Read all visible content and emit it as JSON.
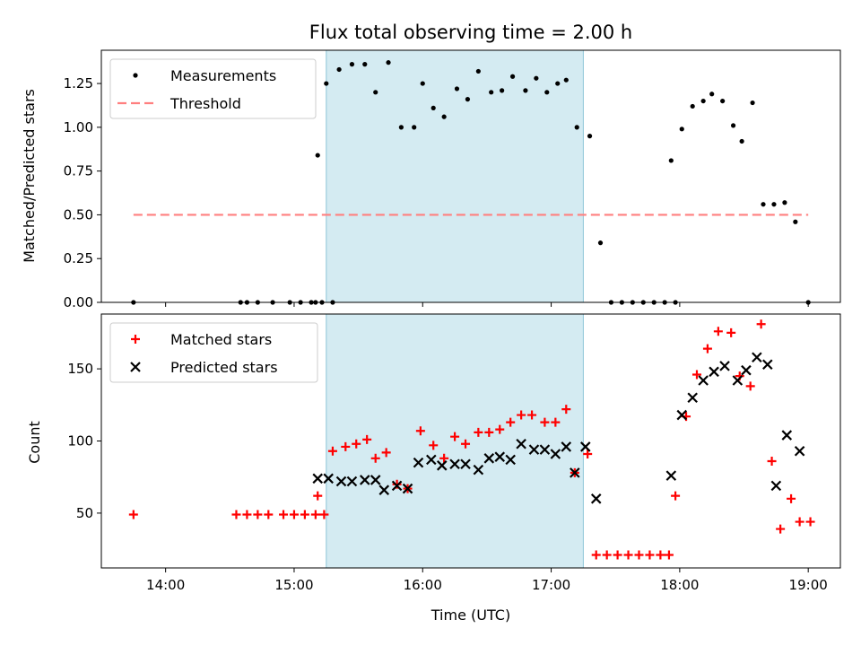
{
  "chart_data": [
    {
      "type": "scatter",
      "title": "Flux total observing time = 2.00 h",
      "xlabel": "",
      "ylabel": "Matched/Predicted stars",
      "xlim": [
        "13:30",
        "19:15"
      ],
      "ylim": [
        0,
        1.44
      ],
      "yticks": [
        0.0,
        0.25,
        0.5,
        0.75,
        1.0,
        1.25
      ],
      "ytick_labels": [
        "0.00",
        "0.25",
        "0.50",
        "0.75",
        "1.00",
        "1.25"
      ],
      "xticks": [
        "14:00",
        "15:00",
        "16:00",
        "17:00",
        "18:00",
        "19:00"
      ],
      "shaded_interval": [
        "15:15",
        "17:15"
      ],
      "shade_color": "#add8e6",
      "legend_position": "top-left",
      "series": [
        {
          "name": "Measurements",
          "marker": "dot",
          "color": "#000000",
          "points": [
            [
              "13:45",
              0.0
            ],
            [
              "14:35",
              0.0
            ],
            [
              "14:38",
              0.0
            ],
            [
              "14:43",
              0.0
            ],
            [
              "14:50",
              0.0
            ],
            [
              "14:58",
              0.0
            ],
            [
              "15:03",
              0.0
            ],
            [
              "15:08",
              0.0
            ],
            [
              "15:13",
              0.0
            ],
            [
              "15:18",
              0.0
            ],
            [
              "15:10",
              0.0
            ],
            [
              "15:11",
              0.84
            ],
            [
              "15:15",
              1.25
            ],
            [
              "15:21",
              1.33
            ],
            [
              "15:27",
              1.36
            ],
            [
              "15:33",
              1.36
            ],
            [
              "15:38",
              1.2
            ],
            [
              "15:44",
              1.37
            ],
            [
              "15:50",
              1.0
            ],
            [
              "15:56",
              1.0
            ],
            [
              "16:00",
              1.25
            ],
            [
              "16:05",
              1.11
            ],
            [
              "16:10",
              1.06
            ],
            [
              "16:16",
              1.22
            ],
            [
              "16:21",
              1.16
            ],
            [
              "16:26",
              1.32
            ],
            [
              "16:32",
              1.2
            ],
            [
              "16:37",
              1.21
            ],
            [
              "16:42",
              1.29
            ],
            [
              "16:48",
              1.21
            ],
            [
              "16:53",
              1.28
            ],
            [
              "16:58",
              1.2
            ],
            [
              "17:03",
              1.25
            ],
            [
              "17:07",
              1.27
            ],
            [
              "17:12",
              1.0
            ],
            [
              "17:18",
              0.95
            ],
            [
              "17:23",
              0.34
            ],
            [
              "17:28",
              0.0
            ],
            [
              "17:33",
              0.0
            ],
            [
              "17:38",
              0.0
            ],
            [
              "17:43",
              0.0
            ],
            [
              "17:48",
              0.0
            ],
            [
              "17:53",
              0.0
            ],
            [
              "17:58",
              0.0
            ],
            [
              "17:56",
              0.81
            ],
            [
              "18:01",
              0.99
            ],
            [
              "18:06",
              1.12
            ],
            [
              "18:11",
              1.15
            ],
            [
              "18:15",
              1.19
            ],
            [
              "18:20",
              1.15
            ],
            [
              "18:25",
              1.01
            ],
            [
              "18:29",
              0.92
            ],
            [
              "18:34",
              1.14
            ],
            [
              "18:39",
              0.56
            ],
            [
              "18:44",
              0.56
            ],
            [
              "18:49",
              0.57
            ],
            [
              "18:54",
              0.46
            ],
            [
              "19:00",
              0.0
            ]
          ]
        },
        {
          "name": "Threshold",
          "marker": "dashed-line",
          "color": "#ff7f7f",
          "points": [
            [
              "13:45",
              0.5
            ],
            [
              "19:00",
              0.5
            ]
          ]
        }
      ]
    },
    {
      "type": "scatter",
      "title": "",
      "xlabel": "Time (UTC)",
      "ylabel": "Count",
      "xlim": [
        "13:30",
        "19:15"
      ],
      "ylim": [
        12,
        188
      ],
      "yticks": [
        50,
        100,
        150
      ],
      "xticks": [
        "14:00",
        "15:00",
        "16:00",
        "17:00",
        "18:00",
        "19:00"
      ],
      "shaded_interval": [
        "15:15",
        "17:15"
      ],
      "shade_color": "#add8e6",
      "legend_position": "top-left",
      "series": [
        {
          "name": "Matched stars",
          "marker": "plus",
          "color": "#ff0000",
          "points": [
            [
              "13:45",
              49
            ],
            [
              "14:33",
              49
            ],
            [
              "14:38",
              49
            ],
            [
              "14:43",
              49
            ],
            [
              "14:48",
              49
            ],
            [
              "14:55",
              49
            ],
            [
              "15:00",
              49
            ],
            [
              "15:05",
              49
            ],
            [
              "15:10",
              49
            ],
            [
              "15:14",
              49
            ],
            [
              "15:11",
              62
            ],
            [
              "15:18",
              93
            ],
            [
              "15:24",
              96
            ],
            [
              "15:29",
              98
            ],
            [
              "15:34",
              101
            ],
            [
              "15:38",
              88
            ],
            [
              "15:43",
              92
            ],
            [
              "15:48",
              70
            ],
            [
              "15:53",
              67
            ],
            [
              "15:59",
              107
            ],
            [
              "16:05",
              97
            ],
            [
              "16:10",
              88
            ],
            [
              "16:15",
              103
            ],
            [
              "16:20",
              98
            ],
            [
              "16:26",
              106
            ],
            [
              "16:31",
              106
            ],
            [
              "16:36",
              108
            ],
            [
              "16:41",
              113
            ],
            [
              "16:46",
              118
            ],
            [
              "16:51",
              118
            ],
            [
              "16:57",
              113
            ],
            [
              "17:02",
              113
            ],
            [
              "17:07",
              122
            ],
            [
              "17:11",
              78
            ],
            [
              "17:17",
              91
            ],
            [
              "17:21",
              21
            ],
            [
              "17:26",
              21
            ],
            [
              "17:31",
              21
            ],
            [
              "17:36",
              21
            ],
            [
              "17:41",
              21
            ],
            [
              "17:46",
              21
            ],
            [
              "17:51",
              21
            ],
            [
              "17:55",
              21
            ],
            [
              "17:58",
              62
            ],
            [
              "18:03",
              117
            ],
            [
              "18:08",
              146
            ],
            [
              "18:13",
              164
            ],
            [
              "18:18",
              176
            ],
            [
              "18:24",
              175
            ],
            [
              "18:28",
              145
            ],
            [
              "18:33",
              138
            ],
            [
              "18:38",
              181
            ],
            [
              "18:43",
              86
            ],
            [
              "18:47",
              39
            ],
            [
              "18:52",
              60
            ],
            [
              "18:56",
              44
            ],
            [
              "19:01",
              44
            ]
          ]
        },
        {
          "name": "Predicted stars",
          "marker": "x",
          "color": "#000000",
          "points": [
            [
              "15:11",
              74
            ],
            [
              "15:16",
              74
            ],
            [
              "15:22",
              72
            ],
            [
              "15:27",
              72
            ],
            [
              "15:33",
              73
            ],
            [
              "15:38",
              73
            ],
            [
              "15:42",
              66
            ],
            [
              "15:48",
              69
            ],
            [
              "15:53",
              67
            ],
            [
              "15:58",
              85
            ],
            [
              "16:04",
              87
            ],
            [
              "16:09",
              83
            ],
            [
              "16:15",
              84
            ],
            [
              "16:20",
              84
            ],
            [
              "16:26",
              80
            ],
            [
              "16:31",
              88
            ],
            [
              "16:36",
              89
            ],
            [
              "16:41",
              87
            ],
            [
              "16:46",
              98
            ],
            [
              "16:52",
              94
            ],
            [
              "16:57",
              94
            ],
            [
              "17:02",
              91
            ],
            [
              "17:07",
              96
            ],
            [
              "17:11",
              78
            ],
            [
              "17:16",
              96
            ],
            [
              "17:21",
              60
            ],
            [
              "17:56",
              76
            ],
            [
              "18:01",
              118
            ],
            [
              "18:06",
              130
            ],
            [
              "18:11",
              142
            ],
            [
              "18:16",
              148
            ],
            [
              "18:21",
              152
            ],
            [
              "18:27",
              142
            ],
            [
              "18:31",
              149
            ],
            [
              "18:36",
              158
            ],
            [
              "18:41",
              153
            ],
            [
              "18:45",
              69
            ],
            [
              "18:50",
              104
            ],
            [
              "18:56",
              93
            ]
          ]
        }
      ]
    }
  ]
}
